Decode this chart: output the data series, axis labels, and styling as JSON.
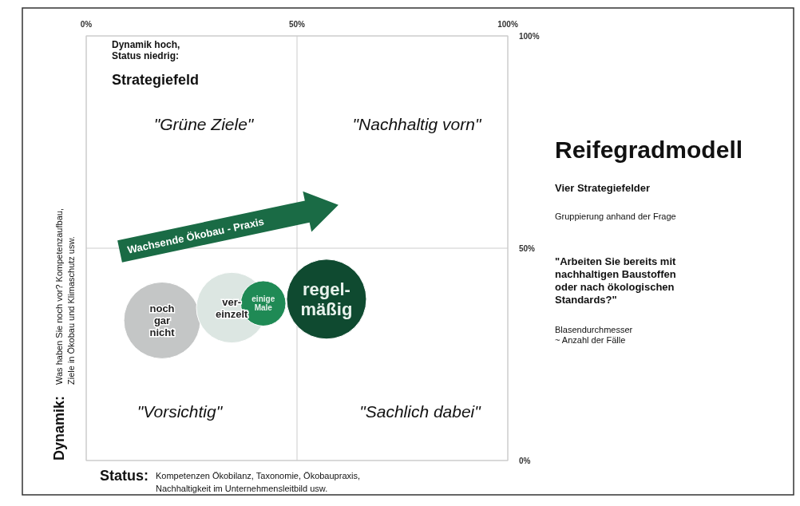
{
  "chart_data": {
    "type": "bubble",
    "title": "Reifegradmodell",
    "subtitle": "Vier Strategiefelder",
    "xlabel": "Status: Kompetenzen Ökobilanz, Taxonomie, Ökobaupraxis,\nNachhaltigkeit im Unternehmensleitbild usw.",
    "ylabel": "Dynamik: Was haben Sie noch vor? Kompetenzaufbau,\nZiele in Ökobau und Klimaschutz usw.",
    "x": [
      18,
      34.5,
      42,
      57
    ],
    "values": [
      33,
      36,
      37,
      38
    ],
    "sizes": [
      0.92,
      0.78,
      0.32,
      1
    ],
    "colors": [
      "#c4c6c6",
      "#dce6e2",
      "#1f8a55",
      "#0f4a30"
    ],
    "xlim": [
      0,
      100
    ],
    "ylim": [
      0,
      100
    ],
    "xticks": [
      {
        "value": 0,
        "label": "0%"
      },
      {
        "value": 50,
        "label": "50%"
      },
      {
        "value": 100,
        "label": "100%"
      }
    ],
    "yticks": [
      {
        "value": 0,
        "label": "0%"
      },
      {
        "value": 50,
        "label": "50%"
      },
      {
        "value": 100,
        "label": "100%"
      }
    ],
    "grid": true,
    "annotations": [
      "Dynamik hoch,\nStatus niedrig:",
      "Strategiefeld",
      "\"Grüne Ziele\"",
      "\"Nachhaltig vorn\"",
      "\"Vorsichtig\"",
      "\"Sachlich dabei\"",
      "Wachsende Ökobau - Praxis",
      "Gruppierung anhand der Frage",
      "\"Arbeiten Sie bereits mit\nnachhaltigen Baustoffen\noder nach ökologischen\nStandards?\"",
      "Blasendurchmesser\n~ Anzahl der Fälle",
      {
        "text": "noch\ngar\nnicht",
        "x": 18,
        "y": 33
      },
      {
        "text": "ver-\neinzelt",
        "x": 34.5,
        "y": 36
      },
      {
        "text": "einige\nMale",
        "x": 42,
        "y": 37
      },
      {
        "text": "regel-\nmäßig",
        "x": 57,
        "y": 38
      }
    ]
  }
}
